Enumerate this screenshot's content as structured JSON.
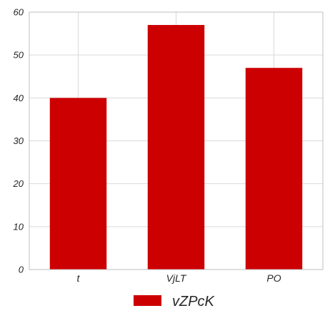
{
  "chart_data": {
    "type": "bar",
    "categories": [
      "t",
      "VjLT",
      "PO"
    ],
    "series": [
      {
        "name": "vZPcK",
        "values": [
          40,
          57,
          47
        ]
      }
    ],
    "ylim": [
      0,
      60
    ],
    "yticks": [
      0,
      10,
      20,
      30,
      40,
      50,
      60
    ],
    "grid": true,
    "legend_position": "bottom-center",
    "colors": {
      "bar": "#cc0000",
      "grid": "#d9d9d9",
      "axis": "#bfbfbf",
      "text": "#262626"
    }
  }
}
